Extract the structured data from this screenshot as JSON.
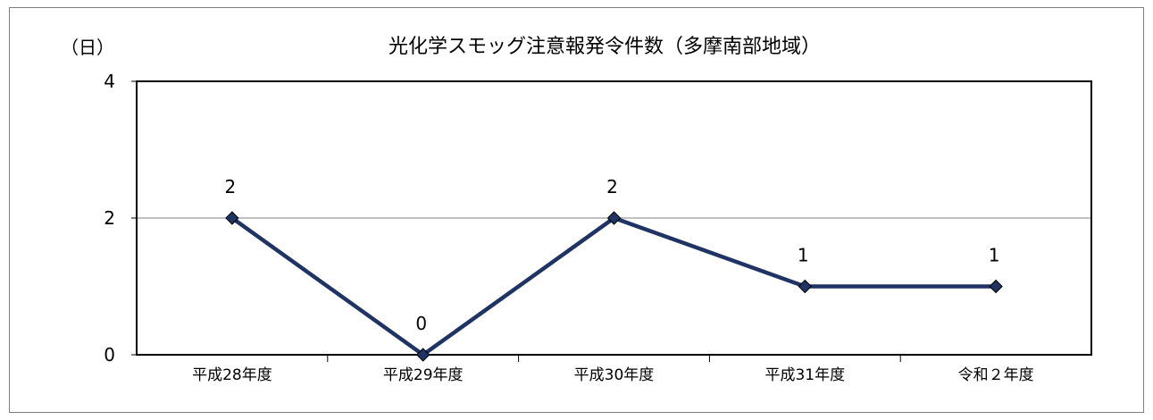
{
  "chart_data": {
    "type": "line",
    "title": "光化学スモッグ注意報発令件数（多摩南部地域）",
    "ylabel": "（日）",
    "xlabel": "",
    "categories": [
      "平成28年度",
      "平成29年度",
      "平成30年度",
      "平成31年度",
      "令和２年度"
    ],
    "series": [
      {
        "values": [
          2,
          0,
          2,
          1,
          1
        ],
        "color": "#1f3464"
      }
    ],
    "data_labels": [
      "2",
      "0",
      "2",
      "1",
      "1"
    ],
    "ylim": [
      0,
      4
    ],
    "yticks": [
      "0",
      "2",
      "4"
    ],
    "grid": "horizontal",
    "legend": "none",
    "marker": "diamond"
  }
}
